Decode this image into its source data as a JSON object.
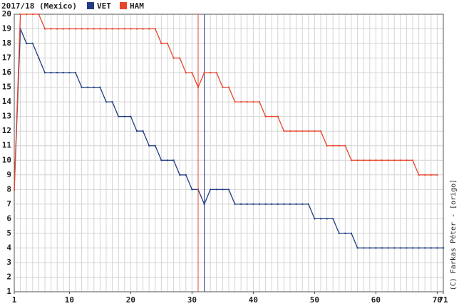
{
  "chart_data": {
    "type": "line",
    "title": "2017/18 (Mexico)",
    "credit": "(C) Farkas Péter - [origo]",
    "x": [
      1,
      2,
      3,
      4,
      5,
      6,
      7,
      8,
      9,
      10,
      11,
      12,
      13,
      14,
      15,
      16,
      17,
      18,
      19,
      20,
      21,
      22,
      23,
      24,
      25,
      26,
      27,
      28,
      29,
      30,
      31,
      32,
      33,
      34,
      35,
      36,
      37,
      38,
      39,
      40,
      41,
      42,
      43,
      44,
      45,
      46,
      47,
      48,
      49,
      50,
      51,
      52,
      53,
      54,
      55,
      56,
      57,
      58,
      59,
      60,
      61,
      62,
      63,
      64,
      65,
      66,
      67,
      68,
      69,
      70,
      71
    ],
    "series": [
      {
        "name": "VET",
        "color": "#1f3c82",
        "pit_lap": 32,
        "values": [
          8,
          19,
          18,
          18,
          17,
          16,
          16,
          16,
          16,
          16,
          16,
          15,
          15,
          15,
          15,
          14,
          14,
          13,
          13,
          13,
          12,
          12,
          11,
          11,
          10,
          10,
          10,
          9,
          9,
          8,
          8,
          7,
          8,
          8,
          8,
          8,
          7,
          7,
          7,
          7,
          7,
          7,
          7,
          7,
          7,
          7,
          7,
          7,
          7,
          6,
          6,
          6,
          6,
          5,
          5,
          5,
          4,
          4,
          4,
          4,
          4,
          4,
          4,
          4,
          4,
          4,
          4,
          4,
          4,
          4,
          4
        ]
      },
      {
        "name": "HAM",
        "color": "#e8452c",
        "pit_lap": 31,
        "values": [
          8,
          20,
          20,
          20,
          20,
          19,
          19,
          19,
          19,
          19,
          19,
          19,
          19,
          19,
          19,
          19,
          19,
          19,
          19,
          19,
          19,
          19,
          19,
          19,
          18,
          18,
          17,
          17,
          16,
          16,
          15,
          16,
          16,
          16,
          15,
          15,
          14,
          14,
          14,
          14,
          14,
          13,
          13,
          13,
          12,
          12,
          12,
          12,
          12,
          12,
          12,
          11,
          11,
          11,
          11,
          10,
          10,
          10,
          10,
          10,
          10,
          10,
          10,
          10,
          10,
          10,
          9,
          9,
          9,
          9,
          null
        ]
      }
    ],
    "xlim": [
      1,
      71
    ],
    "ylim": [
      1,
      20
    ],
    "xticks": [
      1,
      10,
      20,
      30,
      40,
      50,
      60,
      70,
      71
    ],
    "yticks": [
      1,
      2,
      3,
      4,
      5,
      6,
      7,
      8,
      9,
      10,
      11,
      12,
      13,
      14,
      15,
      16,
      17,
      18,
      19,
      20
    ],
    "grid": true
  }
}
